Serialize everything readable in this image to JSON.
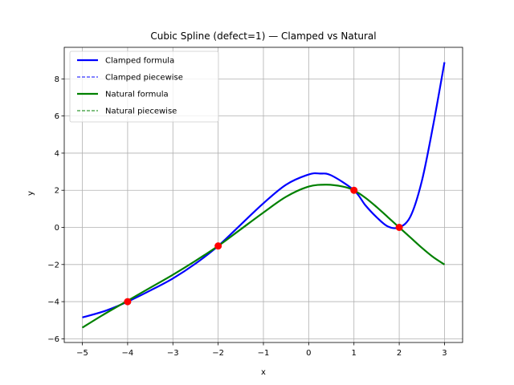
{
  "chart_data": {
    "type": "line",
    "title": "Cubic Spline (defect=1) — Clamped vs Natural",
    "xlabel": "x",
    "ylabel": "y",
    "xlim": [
      -5.4,
      3.4
    ],
    "ylim": [
      -6.2,
      9.7
    ],
    "xticks": [
      -5,
      -4,
      -3,
      -2,
      -1,
      0,
      1,
      2,
      3
    ],
    "xtick_labels": [
      "−5",
      "−4",
      "−3",
      "−2",
      "−1",
      "0",
      "1",
      "2",
      "3"
    ],
    "yticks": [
      -6,
      -4,
      -2,
      0,
      2,
      4,
      6,
      8
    ],
    "ytick_labels": [
      "−6",
      "−4",
      "−2",
      "0",
      "2",
      "4",
      "6",
      "8"
    ],
    "grid": true,
    "legend_position": "top-left",
    "series": [
      {
        "name": "Clamped formula",
        "color": "#0000ff",
        "style": "solid",
        "x": [
          -5,
          -4.5,
          -4,
          -3.5,
          -3,
          -2.5,
          -2,
          -1.5,
          -1,
          -0.5,
          0,
          0.25,
          0.5,
          1,
          1.25,
          1.5,
          1.75,
          2,
          2.25,
          2.5,
          2.75,
          3
        ],
        "y": [
          -4.85,
          -4.5,
          -4.0,
          -3.4,
          -2.75,
          -1.95,
          -1.0,
          0.15,
          1.3,
          2.3,
          2.85,
          2.9,
          2.8,
          2.0,
          1.2,
          0.55,
          0.05,
          0.0,
          0.6,
          2.5,
          5.5,
          8.9
        ]
      },
      {
        "name": "Clamped piecewise",
        "color": "#0000ff",
        "style": "dashed",
        "x": [
          -5,
          -4.5,
          -4,
          -3.5,
          -3,
          -2.5,
          -2,
          -1.5,
          -1,
          -0.5,
          0,
          0.25,
          0.5,
          1,
          1.25,
          1.5,
          1.75,
          2,
          2.25,
          2.5,
          2.75,
          3
        ],
        "y": [
          -4.85,
          -4.5,
          -4.0,
          -3.4,
          -2.75,
          -1.95,
          -1.0,
          0.15,
          1.3,
          2.3,
          2.85,
          2.9,
          2.8,
          2.0,
          1.2,
          0.55,
          0.05,
          0.0,
          0.6,
          2.5,
          5.5,
          8.9
        ]
      },
      {
        "name": "Natural formula",
        "color": "#008000",
        "style": "solid",
        "x": [
          -5,
          -4.5,
          -4,
          -3.5,
          -3,
          -2.5,
          -2,
          -1.5,
          -1,
          -0.5,
          0,
          0.4,
          0.75,
          1,
          1.25,
          1.5,
          1.75,
          2,
          2.25,
          2.5,
          2.75,
          3
        ],
        "y": [
          -5.4,
          -4.65,
          -3.95,
          -3.25,
          -2.55,
          -1.8,
          -1.0,
          -0.1,
          0.8,
          1.65,
          2.2,
          2.3,
          2.2,
          2.0,
          1.6,
          1.1,
          0.55,
          0.0,
          -0.55,
          -1.1,
          -1.6,
          -2.0
        ]
      },
      {
        "name": "Natural piecewise",
        "color": "#008000",
        "style": "dashed",
        "x": [
          -5,
          -4.5,
          -4,
          -3.5,
          -3,
          -2.5,
          -2,
          -1.5,
          -1,
          -0.5,
          0,
          0.4,
          0.75,
          1,
          1.25,
          1.5,
          1.75,
          2,
          2.25,
          2.5,
          2.75,
          3
        ],
        "y": [
          -5.4,
          -4.65,
          -3.95,
          -3.25,
          -2.55,
          -1.8,
          -1.0,
          -0.1,
          0.8,
          1.65,
          2.2,
          2.3,
          2.2,
          2.0,
          1.6,
          1.1,
          0.55,
          0.0,
          -0.55,
          -1.1,
          -1.6,
          -2.0
        ]
      }
    ],
    "points": {
      "color": "#ff0000",
      "x": [
        -4,
        -2,
        1,
        2
      ],
      "y": [
        -4,
        -1,
        2,
        0
      ]
    }
  }
}
